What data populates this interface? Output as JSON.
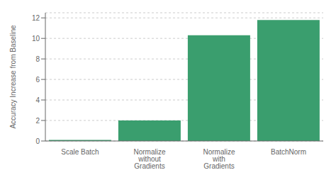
{
  "chart_data": {
    "type": "bar",
    "categories": [
      "Scale Batch",
      "Normalize without Gradients",
      "Normalize with Gradients",
      "BatchNorm"
    ],
    "values": [
      0.1,
      2.0,
      10.3,
      11.8
    ],
    "color": "#3a9e6e",
    "ylabel": "Accuracy Increase from Baseline",
    "ylim": [
      0,
      12.5
    ],
    "yticks": [
      0,
      2,
      4,
      6,
      8,
      10,
      12
    ],
    "grid": true
  }
}
